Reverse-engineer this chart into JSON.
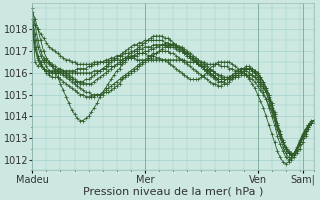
{
  "background_color": "#cce8e0",
  "grid_color": "#99cccc",
  "line_color": "#2d5a27",
  "marker_color": "#2d5a27",
  "xlabel": "Pression niveau de la mer( hPa )",
  "xlabel_fontsize": 8,
  "ylabel_fontsize": 7,
  "tick_fontsize": 7,
  "ylim": [
    1011.5,
    1019.2
  ],
  "yticks": [
    1012,
    1013,
    1014,
    1015,
    1016,
    1017,
    1018
  ],
  "xtick_labels": [
    "Madeu",
    "Mer",
    "Ven",
    "Sam|"
  ],
  "xtick_positions": [
    0,
    40,
    80,
    96
  ],
  "total_points": 101,
  "series": [
    [
      1018.5,
      1018.2,
      1018.0,
      1017.8,
      1017.6,
      1017.4,
      1017.2,
      1017.1,
      1017.0,
      1016.9,
      1016.8,
      1016.7,
      1016.6,
      1016.6,
      1016.5,
      1016.5,
      1016.4,
      1016.4,
      1016.4,
      1016.4,
      1016.4,
      1016.4,
      1016.5,
      1016.5,
      1016.5,
      1016.5,
      1016.5,
      1016.5,
      1016.6,
      1016.6,
      1016.6,
      1016.6,
      1016.6,
      1016.7,
      1016.7,
      1016.7,
      1016.7,
      1016.6,
      1016.6,
      1016.6,
      1016.6,
      1016.6,
      1016.6,
      1016.6,
      1016.6,
      1016.6,
      1016.6,
      1016.6,
      1016.6,
      1016.6,
      1016.6,
      1016.6,
      1016.6,
      1016.6,
      1016.6,
      1016.5,
      1016.5,
      1016.5,
      1016.5,
      1016.5,
      1016.5,
      1016.5,
      1016.4,
      1016.4,
      1016.4,
      1016.4,
      1016.4,
      1016.3,
      1016.3,
      1016.3,
      1016.2,
      1016.2,
      1016.1,
      1016.1,
      1016.0,
      1016.0,
      1015.9,
      1015.8,
      1015.7,
      1015.6,
      1015.4,
      1015.2,
      1015.0,
      1014.8,
      1014.5,
      1014.2,
      1013.8,
      1013.4,
      1013.1,
      1012.8,
      1012.5,
      1012.3,
      1012.2,
      1012.2,
      1012.3,
      1012.5,
      1012.8,
      1013.1,
      1013.4,
      1013.7,
      1013.8
    ],
    [
      1018.5,
      1017.8,
      1017.2,
      1016.8,
      1016.5,
      1016.3,
      1016.1,
      1016.0,
      1016.0,
      1016.0,
      1016.0,
      1016.0,
      1016.0,
      1016.0,
      1016.0,
      1016.0,
      1016.0,
      1016.0,
      1016.0,
      1016.0,
      1016.0,
      1016.0,
      1016.1,
      1016.1,
      1016.1,
      1016.2,
      1016.2,
      1016.3,
      1016.3,
      1016.3,
      1016.4,
      1016.4,
      1016.5,
      1016.6,
      1016.7,
      1016.7,
      1016.8,
      1016.8,
      1016.9,
      1016.9,
      1017.0,
      1017.0,
      1017.1,
      1017.1,
      1017.2,
      1017.2,
      1017.3,
      1017.3,
      1017.3,
      1017.3,
      1017.3,
      1017.2,
      1017.2,
      1017.1,
      1017.0,
      1016.9,
      1016.8,
      1016.7,
      1016.6,
      1016.5,
      1016.4,
      1016.3,
      1016.2,
      1016.1,
      1016.1,
      1016.0,
      1015.9,
      1015.9,
      1015.8,
      1015.8,
      1015.8,
      1015.8,
      1015.8,
      1015.8,
      1015.9,
      1015.9,
      1015.9,
      1015.9,
      1015.9,
      1015.8,
      1015.7,
      1015.5,
      1015.3,
      1015.1,
      1014.8,
      1014.4,
      1014.0,
      1013.6,
      1013.2,
      1012.8,
      1012.5,
      1012.3,
      1012.2,
      1012.3,
      1012.5,
      1012.7,
      1013.0,
      1013.3,
      1013.5,
      1013.7,
      1013.8
    ],
    [
      1018.8,
      1018.5,
      1018.0,
      1017.5,
      1017.0,
      1016.7,
      1016.5,
      1016.4,
      1016.3,
      1016.2,
      1016.2,
      1016.1,
      1016.1,
      1016.1,
      1016.1,
      1016.1,
      1016.2,
      1016.2,
      1016.2,
      1016.2,
      1016.3,
      1016.3,
      1016.4,
      1016.4,
      1016.5,
      1016.5,
      1016.6,
      1016.6,
      1016.7,
      1016.7,
      1016.8,
      1016.8,
      1016.8,
      1016.9,
      1016.9,
      1017.0,
      1017.0,
      1017.0,
      1017.1,
      1017.1,
      1017.2,
      1017.2,
      1017.2,
      1017.3,
      1017.3,
      1017.3,
      1017.3,
      1017.3,
      1017.2,
      1017.2,
      1017.2,
      1017.1,
      1017.0,
      1017.0,
      1016.9,
      1016.8,
      1016.7,
      1016.6,
      1016.5,
      1016.4,
      1016.3,
      1016.2,
      1016.1,
      1016.0,
      1015.9,
      1015.8,
      1015.7,
      1015.7,
      1015.7,
      1015.7,
      1015.7,
      1015.8,
      1015.9,
      1016.0,
      1016.1,
      1016.2,
      1016.2,
      1016.2,
      1016.2,
      1016.1,
      1016.0,
      1015.8,
      1015.6,
      1015.3,
      1015.0,
      1014.6,
      1014.2,
      1013.7,
      1013.3,
      1012.9,
      1012.6,
      1012.4,
      1012.3,
      1012.3,
      1012.5,
      1012.7,
      1013.0,
      1013.2,
      1013.5,
      1013.7,
      1013.8
    ],
    [
      1019.0,
      1018.2,
      1017.5,
      1017.0,
      1016.7,
      1016.5,
      1016.4,
      1016.3,
      1016.2,
      1016.1,
      1016.0,
      1015.9,
      1015.8,
      1015.7,
      1015.6,
      1015.5,
      1015.4,
      1015.3,
      1015.2,
      1015.1,
      1015.1,
      1015.0,
      1015.0,
      1015.0,
      1015.0,
      1015.0,
      1015.1,
      1015.1,
      1015.2,
      1015.3,
      1015.4,
      1015.5,
      1015.7,
      1015.8,
      1015.9,
      1016.0,
      1016.1,
      1016.2,
      1016.3,
      1016.4,
      1016.5,
      1016.6,
      1016.7,
      1016.8,
      1016.9,
      1017.0,
      1017.1,
      1017.2,
      1017.2,
      1017.3,
      1017.3,
      1017.3,
      1017.2,
      1017.2,
      1017.1,
      1017.0,
      1016.9,
      1016.8,
      1016.7,
      1016.6,
      1016.5,
      1016.4,
      1016.3,
      1016.2,
      1016.1,
      1016.0,
      1015.9,
      1015.8,
      1015.7,
      1015.7,
      1015.7,
      1015.8,
      1015.9,
      1016.0,
      1016.1,
      1016.2,
      1016.2,
      1016.2,
      1016.1,
      1016.0,
      1015.9,
      1015.7,
      1015.5,
      1015.2,
      1014.9,
      1014.5,
      1014.1,
      1013.6,
      1013.2,
      1012.8,
      1012.5,
      1012.3,
      1012.2,
      1012.3,
      1012.5,
      1012.8,
      1013.1,
      1013.3,
      1013.6,
      1013.7,
      1013.8
    ],
    [
      1018.5,
      1016.5,
      1016.3,
      1016.5,
      1016.6,
      1016.6,
      1016.5,
      1016.3,
      1016.1,
      1015.8,
      1015.5,
      1015.2,
      1014.9,
      1014.6,
      1014.3,
      1014.1,
      1013.9,
      1013.8,
      1013.8,
      1013.9,
      1014.0,
      1014.2,
      1014.4,
      1014.6,
      1014.9,
      1015.1,
      1015.3,
      1015.5,
      1015.7,
      1015.9,
      1016.1,
      1016.2,
      1016.4,
      1016.5,
      1016.7,
      1016.8,
      1016.8,
      1016.9,
      1016.9,
      1016.9,
      1016.9,
      1016.8,
      1016.8,
      1016.8,
      1016.7,
      1016.7,
      1016.6,
      1016.6,
      1016.5,
      1016.4,
      1016.3,
      1016.2,
      1016.1,
      1016.0,
      1015.9,
      1015.8,
      1015.7,
      1015.7,
      1015.7,
      1015.7,
      1015.8,
      1015.9,
      1016.0,
      1016.2,
      1016.3,
      1016.4,
      1016.5,
      1016.5,
      1016.5,
      1016.5,
      1016.5,
      1016.4,
      1016.3,
      1016.2,
      1016.1,
      1016.0,
      1015.9,
      1015.7,
      1015.5,
      1015.3,
      1015.0,
      1014.7,
      1014.4,
      1014.0,
      1013.6,
      1013.2,
      1012.8,
      1012.4,
      1012.1,
      1011.9,
      1011.8,
      1011.9,
      1012.1,
      1012.3,
      1012.6,
      1012.9,
      1013.2,
      1013.4,
      1013.6,
      1013.7,
      1013.8
    ],
    [
      1018.5,
      1017.5,
      1016.8,
      1016.5,
      1016.2,
      1016.0,
      1015.9,
      1015.8,
      1015.8,
      1015.8,
      1015.7,
      1015.6,
      1015.5,
      1015.4,
      1015.3,
      1015.2,
      1015.1,
      1015.0,
      1015.0,
      1014.9,
      1014.9,
      1014.9,
      1014.9,
      1015.0,
      1015.0,
      1015.1,
      1015.2,
      1015.3,
      1015.4,
      1015.5,
      1015.6,
      1015.7,
      1015.8,
      1015.9,
      1016.0,
      1016.1,
      1016.2,
      1016.3,
      1016.4,
      1016.5,
      1016.6,
      1016.7,
      1016.8,
      1016.9,
      1016.9,
      1017.0,
      1017.0,
      1017.0,
      1017.0,
      1016.9,
      1016.9,
      1016.8,
      1016.7,
      1016.6,
      1016.5,
      1016.4,
      1016.3,
      1016.2,
      1016.1,
      1016.0,
      1015.9,
      1015.8,
      1015.7,
      1015.6,
      1015.5,
      1015.5,
      1015.4,
      1015.4,
      1015.5,
      1015.5,
      1015.6,
      1015.7,
      1015.8,
      1015.9,
      1016.0,
      1016.1,
      1016.1,
      1016.0,
      1015.9,
      1015.8,
      1015.6,
      1015.4,
      1015.1,
      1014.8,
      1014.4,
      1014.0,
      1013.6,
      1013.1,
      1012.7,
      1012.4,
      1012.1,
      1012.0,
      1012.0,
      1012.1,
      1012.4,
      1012.7,
      1013.0,
      1013.3,
      1013.5,
      1013.7,
      1013.8
    ],
    [
      1018.2,
      1017.2,
      1016.7,
      1016.4,
      1016.2,
      1016.1,
      1016.0,
      1016.0,
      1016.0,
      1016.0,
      1016.0,
      1016.0,
      1015.9,
      1015.8,
      1015.7,
      1015.6,
      1015.6,
      1015.6,
      1015.6,
      1015.7,
      1015.7,
      1015.8,
      1015.9,
      1016.0,
      1016.1,
      1016.2,
      1016.3,
      1016.4,
      1016.5,
      1016.6,
      1016.7,
      1016.8,
      1016.9,
      1017.0,
      1017.1,
      1017.2,
      1017.3,
      1017.3,
      1017.4,
      1017.4,
      1017.5,
      1017.5,
      1017.5,
      1017.5,
      1017.5,
      1017.5,
      1017.5,
      1017.4,
      1017.4,
      1017.3,
      1017.3,
      1017.2,
      1017.1,
      1017.0,
      1016.9,
      1016.8,
      1016.7,
      1016.6,
      1016.5,
      1016.4,
      1016.3,
      1016.2,
      1016.1,
      1016.0,
      1015.9,
      1015.8,
      1015.7,
      1015.7,
      1015.7,
      1015.7,
      1015.8,
      1015.9,
      1016.0,
      1016.1,
      1016.2,
      1016.2,
      1016.3,
      1016.3,
      1016.2,
      1016.1,
      1016.0,
      1015.8,
      1015.6,
      1015.3,
      1015.0,
      1014.6,
      1014.1,
      1013.6,
      1013.2,
      1012.8,
      1012.5,
      1012.3,
      1012.2,
      1012.3,
      1012.5,
      1012.8,
      1013.1,
      1013.4,
      1013.6,
      1013.8,
      1013.8
    ],
    [
      1018.0,
      1017.1,
      1016.6,
      1016.3,
      1016.2,
      1016.1,
      1016.1,
      1016.1,
      1016.1,
      1016.1,
      1016.1,
      1016.1,
      1016.0,
      1015.9,
      1015.8,
      1015.7,
      1015.6,
      1015.5,
      1015.5,
      1015.5,
      1015.5,
      1015.5,
      1015.6,
      1015.7,
      1015.8,
      1015.9,
      1016.0,
      1016.1,
      1016.2,
      1016.3,
      1016.4,
      1016.5,
      1016.6,
      1016.7,
      1016.8,
      1016.9,
      1017.0,
      1017.1,
      1017.2,
      1017.3,
      1017.4,
      1017.5,
      1017.6,
      1017.7,
      1017.7,
      1017.7,
      1017.7,
      1017.6,
      1017.6,
      1017.5,
      1017.4,
      1017.3,
      1017.2,
      1017.1,
      1017.0,
      1016.9,
      1016.8,
      1016.7,
      1016.5,
      1016.4,
      1016.3,
      1016.2,
      1016.0,
      1015.9,
      1015.8,
      1015.7,
      1015.6,
      1015.6,
      1015.6,
      1015.7,
      1015.8,
      1015.9,
      1016.0,
      1016.1,
      1016.2,
      1016.2,
      1016.2,
      1016.2,
      1016.1,
      1016.0,
      1015.8,
      1015.6,
      1015.4,
      1015.1,
      1014.7,
      1014.3,
      1013.9,
      1013.4,
      1013.0,
      1012.6,
      1012.3,
      1012.1,
      1012.1,
      1012.2,
      1012.5,
      1012.8,
      1013.1,
      1013.3,
      1013.5,
      1013.7,
      1013.8
    ]
  ]
}
